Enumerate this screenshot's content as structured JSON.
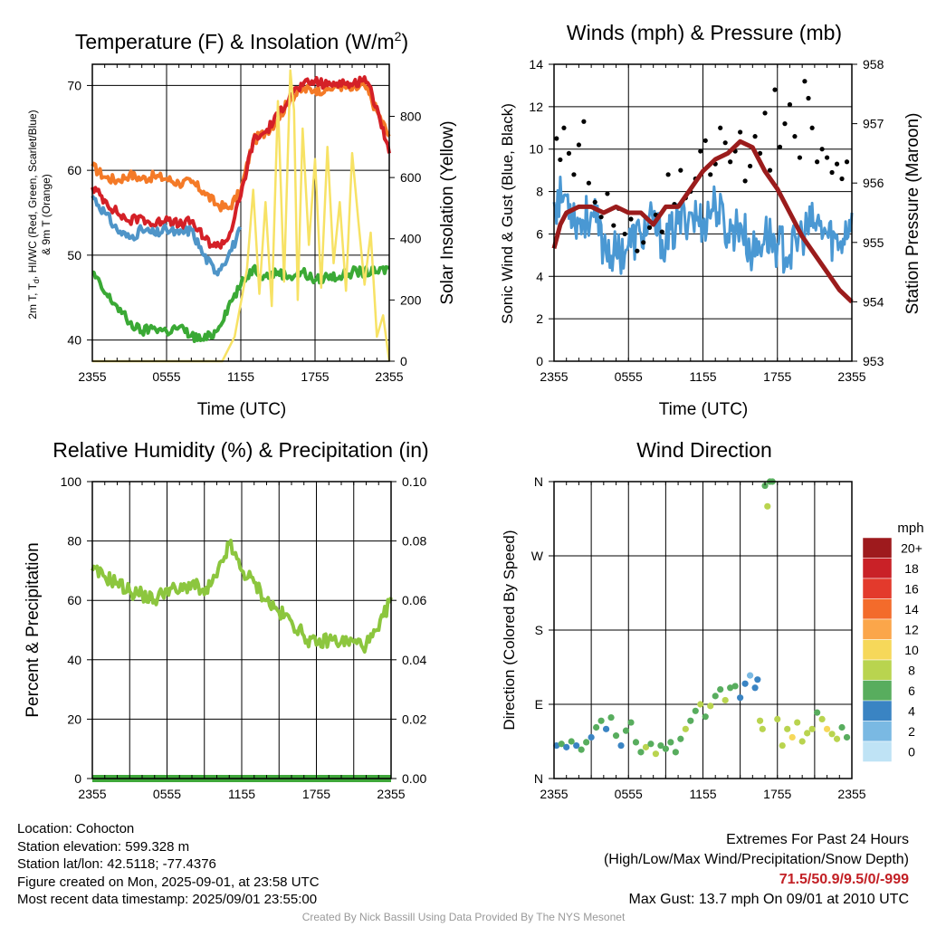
{
  "colors": {
    "temp_red": "#d42027",
    "dewpoint_blue": "#4f95c8",
    "feelslike_green": "#3aa935",
    "temp9m_orange": "#f47a27",
    "insolation_yellow": "#f7e265",
    "wind_blue": "#4a98d3",
    "gust_black": "#000000",
    "pressure_maroon": "#9b1c1c",
    "rh_green": "#8cc63e",
    "precip_green": "#3fa73a"
  },
  "x_tick_labels": [
    "2355",
    "0555",
    "1155",
    "1755",
    "2355"
  ],
  "chart_data": [
    {
      "type": "line",
      "title": "Temperature (F) & Insolation (W/m²)",
      "xlabel": "Time (UTC)",
      "ylabel_left": "2m T, Td, HI/WC (Red, Green, Scarlet/Blue) & 9m T (Orange)",
      "ylabel_right": "Solar Insolation (Yellow)",
      "x_range_hours": [
        0,
        24
      ],
      "ylim_left": [
        37.5,
        72.5
      ],
      "left_ticks": [
        40,
        50,
        60,
        70
      ],
      "ylim_right": [
        0,
        970
      ],
      "right_ticks": [
        0,
        200,
        400,
        600,
        800
      ],
      "series": [
        {
          "color_key": "temp9m_orange",
          "axis": "left",
          "x": [
            0,
            1,
            2,
            3,
            4,
            5,
            6,
            7,
            8,
            9,
            10,
            11,
            12,
            13,
            14,
            15,
            16,
            17,
            18,
            19,
            20,
            21,
            22,
            23,
            24
          ],
          "y": [
            60.5,
            59.2,
            58.8,
            59.5,
            59.0,
            59.3,
            59.0,
            58.5,
            58.6,
            57.5,
            56.0,
            55.5,
            57.5,
            63.5,
            64.5,
            66.0,
            68.5,
            69.5,
            69.5,
            69.5,
            70.0,
            69.5,
            70.0,
            67.0,
            64.0
          ]
        },
        {
          "color_key": "temp_red",
          "axis": "left",
          "x": [
            0,
            1,
            2,
            3,
            4,
            5,
            6,
            7,
            8,
            9,
            10,
            11,
            12,
            13,
            14,
            15,
            16,
            17,
            18,
            19,
            20,
            21,
            22,
            23,
            24
          ],
          "y": [
            58.0,
            56.5,
            55.0,
            54.0,
            54.5,
            53.5,
            54.5,
            53.5,
            54.0,
            52.0,
            51.0,
            52.0,
            57.0,
            63.5,
            64.5,
            66.5,
            69.0,
            70.0,
            70.5,
            70.0,
            70.5,
            70.0,
            71.0,
            67.5,
            62.0
          ]
        },
        {
          "color_key": "dewpoint_blue",
          "axis": "left",
          "x": [
            0,
            1,
            2,
            3,
            4,
            5,
            6,
            7,
            8,
            9,
            10,
            11,
            12
          ],
          "y": [
            57.0,
            55.0,
            53.0,
            52.0,
            53.0,
            52.5,
            53.0,
            52.5,
            53.0,
            50.0,
            48.0,
            50.0,
            53.0
          ]
        },
        {
          "color_key": "feelslike_green",
          "axis": "left",
          "x": [
            0,
            1,
            2,
            3,
            4,
            5,
            6,
            7,
            8,
            9,
            10,
            11,
            12,
            13,
            14,
            15,
            16,
            17,
            18,
            19,
            20,
            21,
            22,
            23,
            24
          ],
          "y": [
            48.0,
            45.5,
            44.0,
            42.0,
            41.0,
            41.5,
            41.0,
            41.5,
            40.5,
            40.0,
            41.0,
            44.0,
            46.5,
            48.5,
            47.5,
            48.0,
            47.5,
            48.0,
            47.0,
            47.5,
            47.5,
            48.0,
            48.0,
            48.0,
            48.5
          ]
        },
        {
          "color_key": "insolation_yellow",
          "axis": "right",
          "x": [
            0,
            10.5,
            11.5,
            12.5,
            13.0,
            13.5,
            14.0,
            14.5,
            15.0,
            15.5,
            16.0,
            16.3,
            16.6,
            17.0,
            17.5,
            18.0,
            18.5,
            19.0,
            19.5,
            20.0,
            20.5,
            21.0,
            21.5,
            22.0,
            22.5,
            23.0,
            23.5,
            24.0
          ],
          "y": [
            0,
            0,
            80,
            300,
            560,
            220,
            520,
            180,
            850,
            260,
            950,
            820,
            200,
            760,
            380,
            660,
            240,
            700,
            320,
            520,
            230,
            680,
            460,
            250,
            420,
            80,
            150,
            0
          ]
        }
      ]
    },
    {
      "type": "line",
      "title": "Winds (mph) & Pressure (mb)",
      "xlabel": "Time (UTC)",
      "ylabel_left": "Sonic Wind & Gust (Blue, Black)",
      "ylabel_right": "Station Pressure (Maroon)",
      "x_range_hours": [
        0,
        24
      ],
      "ylim_left": [
        0,
        14
      ],
      "left_ticks": [
        0,
        2,
        4,
        6,
        8,
        10,
        12,
        14
      ],
      "ylim_right": [
        953,
        958
      ],
      "right_ticks": [
        953,
        954,
        955,
        956,
        957,
        958
      ],
      "series": [
        {
          "color_key": "wind_blue",
          "axis": "left",
          "style": "line",
          "x": [
            0,
            1,
            2,
            3,
            4,
            5,
            6,
            7,
            8,
            9,
            10,
            11,
            12,
            13,
            14,
            15,
            16,
            17,
            18,
            19,
            20,
            21,
            22,
            23,
            24
          ],
          "y": [
            7.5,
            7.8,
            6.5,
            7.0,
            5.5,
            5.0,
            5.5,
            6.0,
            6.5,
            5.5,
            6.5,
            7.0,
            6.5,
            7.5,
            6.0,
            6.5,
            5.0,
            6.0,
            5.5,
            5.0,
            6.0,
            6.5,
            6.0,
            5.5,
            7.0
          ]
        },
        {
          "color_key": "gust_black",
          "axis": "left",
          "style": "dots",
          "x": [
            0.2,
            0.5,
            0.8,
            1.2,
            1.6,
            2.0,
            2.4,
            2.8,
            3.3,
            3.8,
            4.3,
            4.8,
            5.2,
            5.7,
            6.2,
            6.7,
            7.2,
            7.7,
            8.2,
            8.7,
            9.2,
            9.7,
            10.2,
            10.6,
            11.0,
            11.4,
            11.8,
            12.2,
            12.6,
            13.0,
            13.4,
            13.8,
            14.2,
            14.6,
            15.0,
            15.4,
            15.8,
            16.2,
            16.6,
            17.0,
            17.4,
            17.8,
            18.2,
            18.6,
            19.0,
            19.4,
            19.8,
            20.2,
            20.5,
            20.8,
            21.2,
            21.6,
            22.0,
            22.4,
            22.8,
            23.2,
            23.6
          ],
          "y": [
            10.5,
            9.5,
            11.0,
            9.8,
            8.8,
            10.2,
            11.3,
            8.4,
            7.5,
            6.8,
            7.9,
            6.4,
            7.2,
            6.0,
            6.7,
            5.2,
            5.6,
            6.3,
            6.9,
            6.1,
            8.8,
            7.4,
            9.0,
            7.7,
            8.0,
            8.6,
            9.9,
            10.4,
            8.8,
            9.3,
            11.0,
            10.3,
            9.4,
            9.9,
            10.8,
            8.5,
            9.2,
            10.6,
            9.8,
            11.7,
            9.0,
            12.8,
            10.1,
            11.2,
            12.1,
            10.6,
            9.6,
            13.2,
            12.4,
            11.0,
            9.4,
            10.0,
            9.6,
            8.9,
            9.3,
            8.6,
            9.4
          ]
        },
        {
          "color_key": "pressure_maroon",
          "axis": "right",
          "style": "line",
          "x": [
            0,
            0.5,
            1,
            2,
            3,
            4,
            5,
            6,
            7,
            8,
            9,
            10,
            11,
            12,
            13,
            14,
            15,
            16,
            17,
            18,
            19,
            20,
            21,
            22,
            23,
            24
          ],
          "y": [
            954.9,
            955.3,
            955.5,
            955.6,
            955.6,
            955.5,
            955.6,
            955.5,
            955.5,
            955.3,
            955.6,
            955.6,
            955.9,
            956.2,
            956.4,
            956.5,
            956.7,
            956.6,
            956.2,
            955.9,
            955.5,
            955.1,
            954.8,
            954.5,
            954.2,
            954.0
          ]
        }
      ]
    },
    {
      "type": "line",
      "title": "Relative Humidity (%) & Precipitation (in)",
      "xlabel": "",
      "ylabel_left": "Percent & Precipitation",
      "x_range_hours": [
        0,
        24
      ],
      "ylim_left": [
        0,
        100
      ],
      "left_ticks": [
        0,
        20,
        40,
        60,
        80,
        100
      ],
      "ylim_right": [
        0,
        0.1
      ],
      "right_ticks": [
        "0.00",
        "0.02",
        "0.04",
        "0.06",
        "0.08",
        "0.10"
      ],
      "series": [
        {
          "color_key": "rh_green",
          "axis": "left",
          "x": [
            0,
            1,
            2,
            3,
            4,
            5,
            6,
            7,
            8,
            9,
            10,
            11,
            12,
            13,
            14,
            15,
            16,
            17,
            18,
            19,
            20,
            21,
            22,
            23,
            24
          ],
          "y": [
            70,
            68,
            66,
            63,
            62,
            60,
            64,
            63,
            66,
            62,
            68,
            79,
            70,
            66,
            60,
            56,
            53,
            48,
            45,
            47,
            46,
            46,
            45,
            50,
            61
          ]
        },
        {
          "color_key": "precip_green",
          "axis": "right",
          "x": [
            0,
            24
          ],
          "y": [
            0,
            0
          ]
        }
      ]
    },
    {
      "type": "scatter",
      "title": "Wind Direction",
      "xlabel": "",
      "ylabel_left": "Direction (Colored By Speed)",
      "x_range_hours": [
        0,
        24
      ],
      "direction_labels": [
        "N",
        "E",
        "S",
        "W",
        "N"
      ],
      "ylim_degrees": [
        0,
        360
      ],
      "x": [
        0.2,
        0.6,
        1.0,
        1.4,
        1.8,
        2.2,
        2.6,
        3.0,
        3.4,
        3.8,
        4.2,
        4.6,
        5.0,
        5.4,
        5.8,
        6.2,
        6.6,
        7.0,
        7.4,
        7.8,
        8.2,
        8.6,
        9.0,
        9.4,
        9.8,
        10.2,
        10.6,
        11.0,
        11.4,
        11.8,
        12.2,
        12.6,
        13.0,
        13.4,
        13.8,
        14.2,
        14.6,
        15.0,
        15.4,
        15.8,
        16.2,
        16.4,
        16.6,
        16.8,
        17.0,
        17.2,
        17.4,
        17.6,
        18.0,
        18.4,
        18.8,
        19.2,
        19.6,
        20.0,
        20.4,
        20.8,
        21.2,
        21.6,
        22.0,
        22.4,
        22.8,
        23.2,
        23.6
      ],
      "y_degrees": [
        40,
        42,
        38,
        45,
        40,
        35,
        44,
        50,
        62,
        70,
        60,
        74,
        52,
        40,
        58,
        68,
        44,
        32,
        38,
        42,
        30,
        40,
        36,
        44,
        32,
        48,
        60,
        70,
        82,
        90,
        75,
        88,
        100,
        108,
        95,
        110,
        112,
        98,
        115,
        125,
        110,
        120,
        70,
        60,
        355,
        330,
        360,
        360,
        72,
        40,
        60,
        50,
        68,
        45,
        55,
        60,
        80,
        72,
        60,
        54,
        48,
        62,
        50
      ],
      "speed_mph": [
        4,
        5,
        4,
        5,
        4,
        6,
        5,
        4,
        6,
        5,
        4,
        5,
        6,
        4,
        5,
        6,
        5,
        6,
        7,
        6,
        7,
        5,
        6,
        5,
        6,
        6,
        7,
        6,
        5,
        7,
        6,
        7,
        6,
        5,
        7,
        6,
        5,
        3,
        3,
        2,
        4,
        3,
        8,
        7,
        6,
        7,
        6,
        6,
        7,
        8,
        7,
        9,
        8,
        7,
        8,
        8,
        6,
        7,
        9,
        8,
        7,
        6,
        6
      ]
    }
  ],
  "panels": {
    "temperature": {
      "title": "Temperature (F) & Insolation (W/m",
      "title_sup": "2",
      "title_end": ")",
      "left_tick_labels": [
        "70",
        "60",
        "50",
        "40"
      ],
      "right_tick_labels": [
        "800",
        "600",
        "400",
        "200",
        "0"
      ],
      "ylabel_left_line1_pre": "2m T, T",
      "ylabel_left_line1_sub": "d",
      "ylabel_left_line1_post": ", HI/WC (Red, Green, Scarlet/Blue)",
      "ylabel_left_line2": "& 9m T (Orange)",
      "ylabel_right": "Solar Insolation (Yellow)",
      "xlabel": "Time (UTC)"
    },
    "winds": {
      "title": "Winds (mph) & Pressure (mb)",
      "left_tick_labels": [
        "14",
        "12",
        "10",
        "8",
        "6",
        "4",
        "2",
        "0"
      ],
      "right_tick_labels": [
        "958",
        "957",
        "956",
        "955",
        "954",
        "953"
      ],
      "ylabel_left": "Sonic Wind & Gust (Blue, Black)",
      "ylabel_right": "Station Pressure (Maroon)",
      "xlabel": "Time (UTC)"
    },
    "humidity": {
      "title": "Relative Humidity (%) & Precipitation (in)",
      "left_tick_labels": [
        "100",
        "80",
        "60",
        "40",
        "20",
        "0"
      ],
      "right_tick_labels": [
        "0.10",
        "0.08",
        "0.06",
        "0.04",
        "0.02",
        "0.00"
      ],
      "ylabel_left": "Percent & Precipitation"
    },
    "direction": {
      "title": "Wind Direction",
      "left_tick_labels": [
        "N",
        "W",
        "S",
        "E",
        "N"
      ],
      "ylabel_left": "Direction (Colored By Speed)"
    }
  },
  "colorbar": {
    "title": "mph",
    "labels": [
      "20+",
      "18",
      "16",
      "14",
      "12",
      "10",
      "8",
      "6",
      "4",
      "2",
      "0"
    ],
    "colors": [
      "#9e1a1d",
      "#c92127",
      "#e33a2c",
      "#f36b2b",
      "#fba64a",
      "#f6d85a",
      "#b9d44f",
      "#58ad5e",
      "#3a84c3",
      "#7ab9e3",
      "#bfe3f5"
    ]
  },
  "info_left": {
    "location": "Location: Cohocton",
    "elevation": "Station elevation: 599.328 m",
    "latlon": "Station lat/lon: 42.5118; -77.4376",
    "created": "Figure created on Mon, 2025-09-01, at 23:58 UTC",
    "recent": "Most recent data timestamp: 2025/09/01 23:55:00"
  },
  "info_right": {
    "title": "Extremes For Past 24 Hours",
    "legend": "(High/Low/Max Wind/Precipitation/Snow Depth)",
    "values": "71.5/50.9/9.5/0/-999",
    "gust": "Max Gust: 13.7 mph On 09/01 at 2010 UTC"
  },
  "credit": "Created By Nick Bassill Using Data Provided By The NYS Mesonet"
}
